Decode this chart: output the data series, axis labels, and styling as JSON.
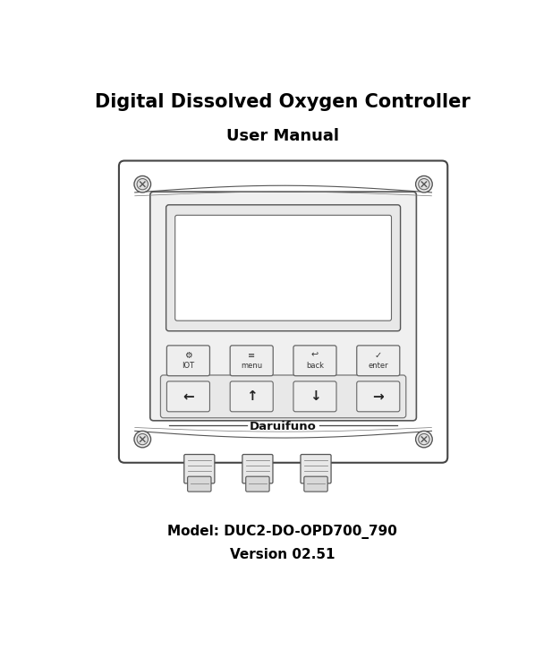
{
  "title": "Digital Dissolved Oxygen Controller",
  "subtitle": "User Manual",
  "model_text": "Model: DUC2-DO-OPD700_790",
  "version_text": "Version 02.51",
  "bg_color": "#ffffff",
  "title_fontsize": 15,
  "subtitle_fontsize": 13,
  "model_fontsize": 11,
  "version_fontsize": 11,
  "brand_text": "Daruifuno",
  "btn_row1": [
    "IOT",
    "menu",
    "back",
    "enter"
  ],
  "btn_row2": [
    "←",
    "↑",
    "↓",
    "→"
  ],
  "device_fill": "#ffffff",
  "device_edge": "#444444",
  "panel_fill": "#f0f0f0",
  "panel_edge": "#555555",
  "screen_fill": "#ffffff",
  "screen_edge": "#555555",
  "btn_fill": "#eeeeee",
  "btn_edge": "#666666"
}
